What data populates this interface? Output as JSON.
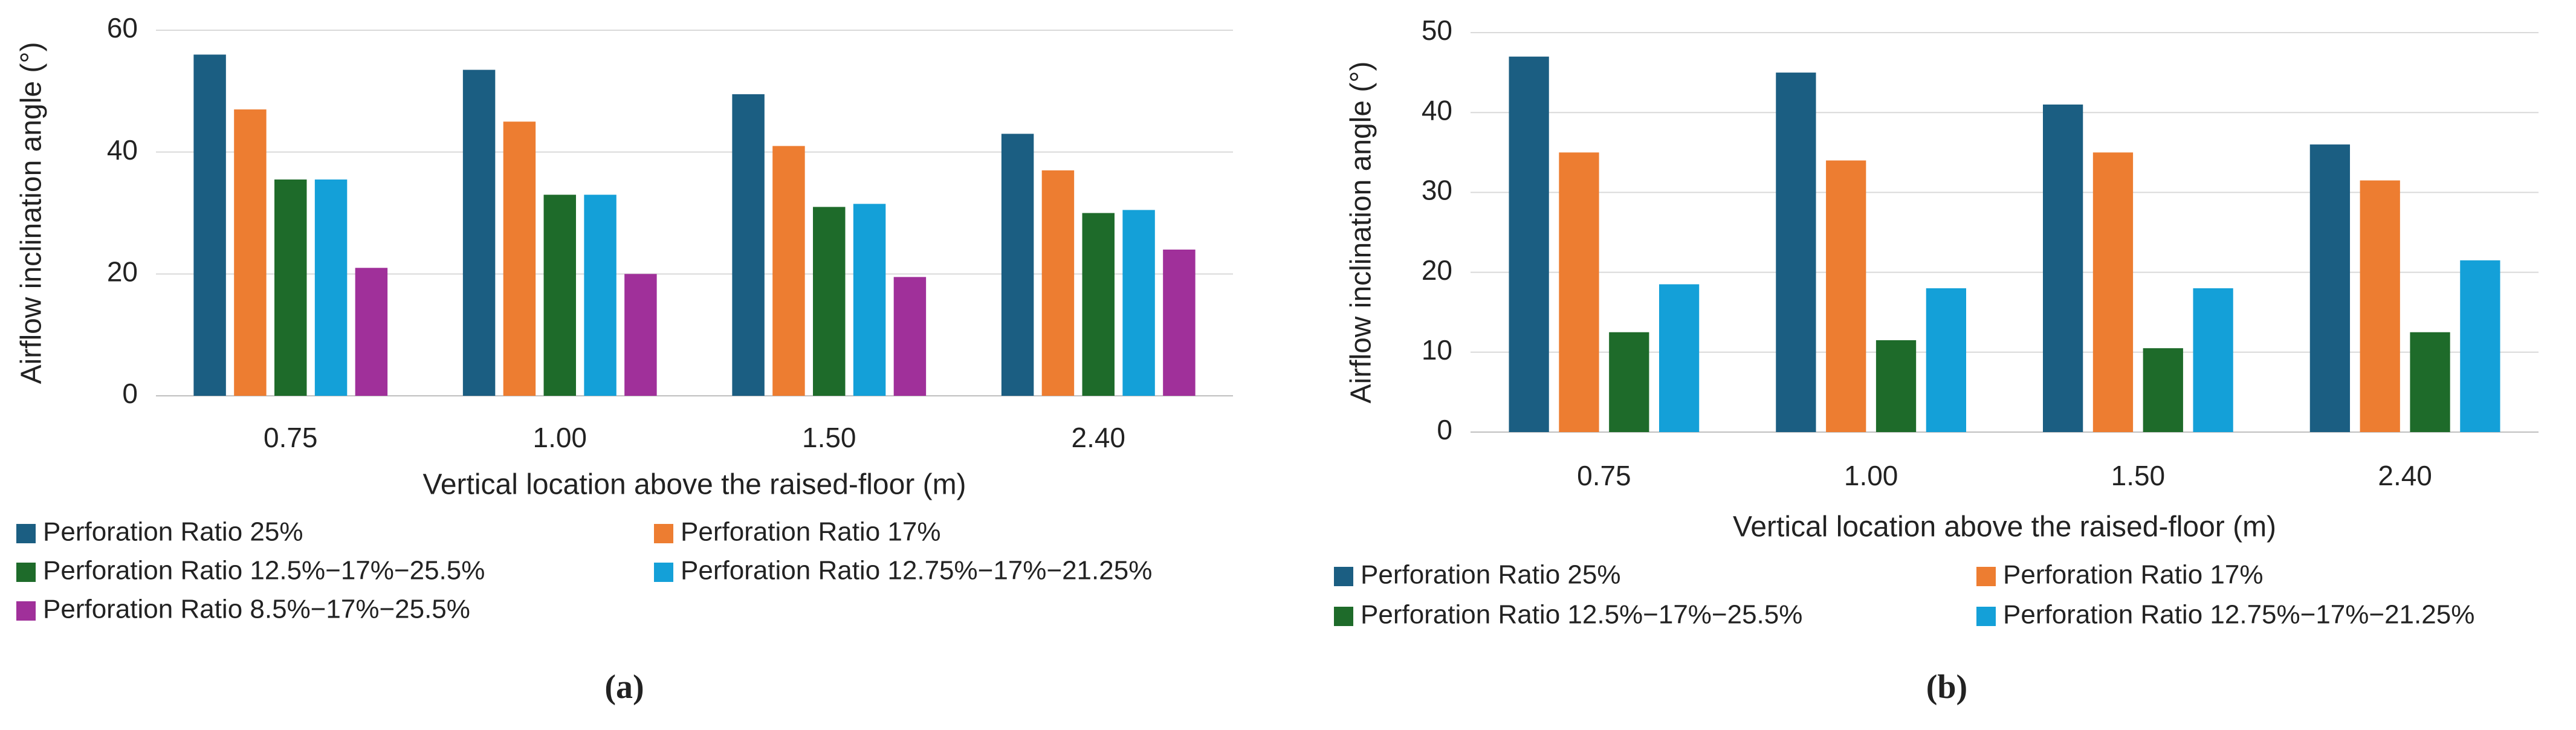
{
  "chart_data": [
    {
      "type": "bar",
      "caption": "(a)",
      "x_label": "Vertical location above the raised-floor (m)",
      "y_label": "Airflow inclination angle (°)",
      "categories": [
        "0.75",
        "1.00",
        "1.50",
        "2.40"
      ],
      "ylim": [
        0,
        60
      ],
      "yticks": [
        0,
        20,
        40,
        60
      ],
      "grid": true,
      "legend": "bottom",
      "series": [
        {
          "name": "Perforation Ratio 25%",
          "color": "#1b5e82",
          "values": [
            56,
            53.5,
            49.5,
            43
          ]
        },
        {
          "name": "Perforation Ratio 17%",
          "color": "#ed7d31",
          "values": [
            47,
            45,
            41,
            37
          ]
        },
        {
          "name": "Perforation Ratio 12.5%−17%−25.5%",
          "color": "#1e6b2a",
          "values": [
            35.5,
            33,
            31,
            30
          ]
        },
        {
          "name": "Perforation Ratio 12.75%−17%−21.25%",
          "color": "#14a0d8",
          "values": [
            35.5,
            33,
            31.5,
            30.5
          ]
        },
        {
          "name": "Perforation Ratio 8.5%−17%−25.5%",
          "color": "#a0309a",
          "values": [
            21,
            20,
            19.5,
            24
          ]
        }
      ]
    },
    {
      "type": "bar",
      "caption": "(b)",
      "x_label": "Vertical location above the raised-floor (m)",
      "y_label": "Airflow inclination angle (°)",
      "categories": [
        "0.75",
        "1.00",
        "1.50",
        "2.40"
      ],
      "ylim": [
        0,
        50
      ],
      "yticks": [
        0,
        10,
        20,
        30,
        40,
        50
      ],
      "grid": true,
      "legend": "bottom",
      "series": [
        {
          "name": "Perforation Ratio 25%",
          "color": "#1b5e82",
          "values": [
            47,
            45,
            41,
            36
          ]
        },
        {
          "name": "Perforation Ratio 17%",
          "color": "#ed7d31",
          "values": [
            35,
            34,
            35,
            31.5
          ]
        },
        {
          "name": "Perforation Ratio 12.5%−17%−25.5%",
          "color": "#1e6b2a",
          "values": [
            12.5,
            11.5,
            10.5,
            12.5
          ]
        },
        {
          "name": "Perforation Ratio 12.75%−17%−21.25%",
          "color": "#14a0d8",
          "values": [
            18.5,
            18,
            18,
            21.5
          ]
        }
      ]
    }
  ]
}
